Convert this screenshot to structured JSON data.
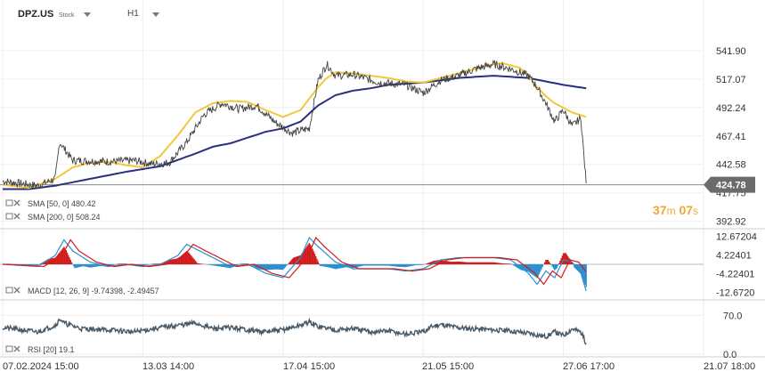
{
  "header": {
    "symbol": "DPZ.US",
    "asset_type": "Stock",
    "timeframe": "H1"
  },
  "timer": {
    "minutes": "37",
    "m_label": "m",
    "seconds": "07",
    "s_label": "s"
  },
  "colors": {
    "price": "#424242",
    "sma50": "#f0c93a",
    "sma200": "#2b2f7e",
    "macd_pos": "#d21b1b",
    "macd_neg": "#2a8fd1",
    "macd_line": "#2a8fd1",
    "signal_line": "#d21b1b",
    "rsi": "#4a5a66",
    "price_tag": "#6b6b6b"
  },
  "indicators": {
    "sma50": {
      "label": "SMA [50, 0]",
      "value": "480.42"
    },
    "sma200": {
      "label": "SMA [200, 0]",
      "value": "508.24"
    },
    "macd": {
      "label": "MACD [12, 26, 9]",
      "value1": "-9.74398,",
      "value2": "-2.49457"
    },
    "rsi": {
      "label": "RSI [20]",
      "value": "19.1"
    }
  },
  "chart_data": {
    "type": "line",
    "current_price": "424.78",
    "price_axis_ticks": [
      "541.90",
      "517.07",
      "492.24",
      "467.41",
      "442.58",
      "417.75",
      "392.92"
    ],
    "macd_axis_ticks": [
      "12.67204",
      "4.22401",
      "-4.22401",
      "-12.6720"
    ],
    "rsi_axis_ticks": [
      "70.0",
      "0.0"
    ],
    "x_ticks": [
      "07.02.2024 15:00",
      "13.03 14:00",
      "17.04 15:00",
      "21.05 15:00",
      "27.06 17:00",
      "21.07 18:00"
    ],
    "price_keypoints": [
      [
        0,
        428
      ],
      [
        4,
        424
      ],
      [
        6,
        430
      ],
      [
        6.5,
        462
      ],
      [
        8,
        446
      ],
      [
        12,
        445
      ],
      [
        15,
        446
      ],
      [
        17,
        443
      ],
      [
        19,
        444
      ],
      [
        21,
        462
      ],
      [
        23,
        486
      ],
      [
        25,
        496
      ],
      [
        27,
        491
      ],
      [
        29,
        494
      ],
      [
        31,
        480
      ],
      [
        33,
        470
      ],
      [
        35,
        474
      ],
      [
        36,
        516
      ],
      [
        37,
        530
      ],
      [
        38,
        520
      ],
      [
        40,
        521
      ],
      [
        43,
        514
      ],
      [
        46,
        512
      ],
      [
        48,
        505
      ],
      [
        50,
        516
      ],
      [
        52,
        520
      ],
      [
        54,
        526
      ],
      [
        56,
        530
      ],
      [
        58,
        526
      ],
      [
        60,
        520
      ],
      [
        61,
        510
      ],
      [
        62,
        496
      ],
      [
        63,
        480
      ],
      [
        64,
        490
      ],
      [
        65,
        476
      ],
      [
        66,
        483
      ],
      [
        66.6,
        426
      ]
    ],
    "sma50_keypoints": [
      [
        0,
        425
      ],
      [
        3,
        422
      ],
      [
        6,
        430
      ],
      [
        8,
        440
      ],
      [
        10,
        444
      ],
      [
        12,
        445
      ],
      [
        14,
        442
      ],
      [
        16,
        440
      ],
      [
        18,
        450
      ],
      [
        20,
        468
      ],
      [
        22,
        488
      ],
      [
        24,
        496
      ],
      [
        26,
        498
      ],
      [
        28,
        497
      ],
      [
        30,
        490
      ],
      [
        32,
        484
      ],
      [
        34,
        490
      ],
      [
        35,
        500
      ],
      [
        36,
        510
      ],
      [
        37,
        518
      ],
      [
        38,
        523
      ],
      [
        40,
        522
      ],
      [
        42,
        520
      ],
      [
        44,
        518
      ],
      [
        46,
        515
      ],
      [
        48,
        514
      ],
      [
        50,
        518
      ],
      [
        52,
        522
      ],
      [
        54,
        526
      ],
      [
        56,
        530
      ],
      [
        57,
        531
      ],
      [
        59,
        527
      ],
      [
        60,
        520
      ],
      [
        61,
        510
      ],
      [
        62,
        502
      ],
      [
        63,
        496
      ],
      [
        64,
        492
      ],
      [
        65,
        488
      ],
      [
        66.6,
        484
      ]
    ],
    "sma200_keypoints": [
      [
        0,
        421
      ],
      [
        3,
        421
      ],
      [
        6,
        424
      ],
      [
        10,
        430
      ],
      [
        14,
        436
      ],
      [
        18,
        441
      ],
      [
        22,
        452
      ],
      [
        24,
        458
      ],
      [
        26,
        461
      ],
      [
        28,
        466
      ],
      [
        30,
        471
      ],
      [
        32,
        474
      ],
      [
        34,
        480
      ],
      [
        36,
        494
      ],
      [
        38,
        503
      ],
      [
        40,
        507
      ],
      [
        42,
        509
      ],
      [
        44,
        512
      ],
      [
        46,
        513
      ],
      [
        48,
        514
      ],
      [
        50,
        516
      ],
      [
        52,
        518
      ],
      [
        54,
        519
      ],
      [
        56,
        520
      ],
      [
        58,
        519
      ],
      [
        60,
        518
      ],
      [
        62,
        515
      ],
      [
        64,
        512
      ],
      [
        66.6,
        509
      ]
    ],
    "macd_keypoints": [
      [
        0,
        0
      ],
      [
        4,
        -1
      ],
      [
        6,
        4
      ],
      [
        7,
        11
      ],
      [
        8,
        6
      ],
      [
        10,
        1
      ],
      [
        12,
        -1
      ],
      [
        14,
        0
      ],
      [
        16,
        -1
      ],
      [
        18,
        0
      ],
      [
        20,
        4
      ],
      [
        21,
        9
      ],
      [
        22,
        7
      ],
      [
        24,
        3
      ],
      [
        26,
        -1
      ],
      [
        28,
        0
      ],
      [
        30,
        -4
      ],
      [
        32,
        -6
      ],
      [
        34,
        3
      ],
      [
        35,
        12
      ],
      [
        36,
        8
      ],
      [
        38,
        1
      ],
      [
        40,
        -2
      ],
      [
        42,
        -2
      ],
      [
        44,
        -2
      ],
      [
        46,
        -3
      ],
      [
        48,
        -2
      ],
      [
        50,
        2
      ],
      [
        52,
        3
      ],
      [
        54,
        3
      ],
      [
        56,
        3
      ],
      [
        58,
        2
      ],
      [
        60,
        -4
      ],
      [
        61,
        -9
      ],
      [
        62,
        -3
      ],
      [
        63,
        -6
      ],
      [
        64,
        2
      ],
      [
        65,
        1
      ],
      [
        66,
        -4
      ],
      [
        66.6,
        -12
      ]
    ],
    "rsi_keypoints": [
      [
        0,
        48
      ],
      [
        2,
        44
      ],
      [
        4,
        40
      ],
      [
        6,
        52
      ],
      [
        6.6,
        64
      ],
      [
        7,
        56
      ],
      [
        9,
        46
      ],
      [
        12,
        44
      ],
      [
        15,
        40
      ],
      [
        18,
        48
      ],
      [
        20,
        52
      ],
      [
        22,
        56
      ],
      [
        24,
        46
      ],
      [
        26,
        48
      ],
      [
        28,
        44
      ],
      [
        30,
        40
      ],
      [
        32,
        44
      ],
      [
        34,
        52
      ],
      [
        35,
        58
      ],
      [
        36,
        50
      ],
      [
        38,
        44
      ],
      [
        40,
        46
      ],
      [
        42,
        40
      ],
      [
        44,
        42
      ],
      [
        46,
        36
      ],
      [
        48,
        40
      ],
      [
        49,
        50
      ],
      [
        50,
        54
      ],
      [
        52,
        48
      ],
      [
        54,
        46
      ],
      [
        56,
        44
      ],
      [
        58,
        42
      ],
      [
        60,
        38
      ],
      [
        62,
        32
      ],
      [
        63,
        40
      ],
      [
        64,
        34
      ],
      [
        65,
        46
      ],
      [
        66,
        40
      ],
      [
        66.6,
        20
      ]
    ]
  }
}
